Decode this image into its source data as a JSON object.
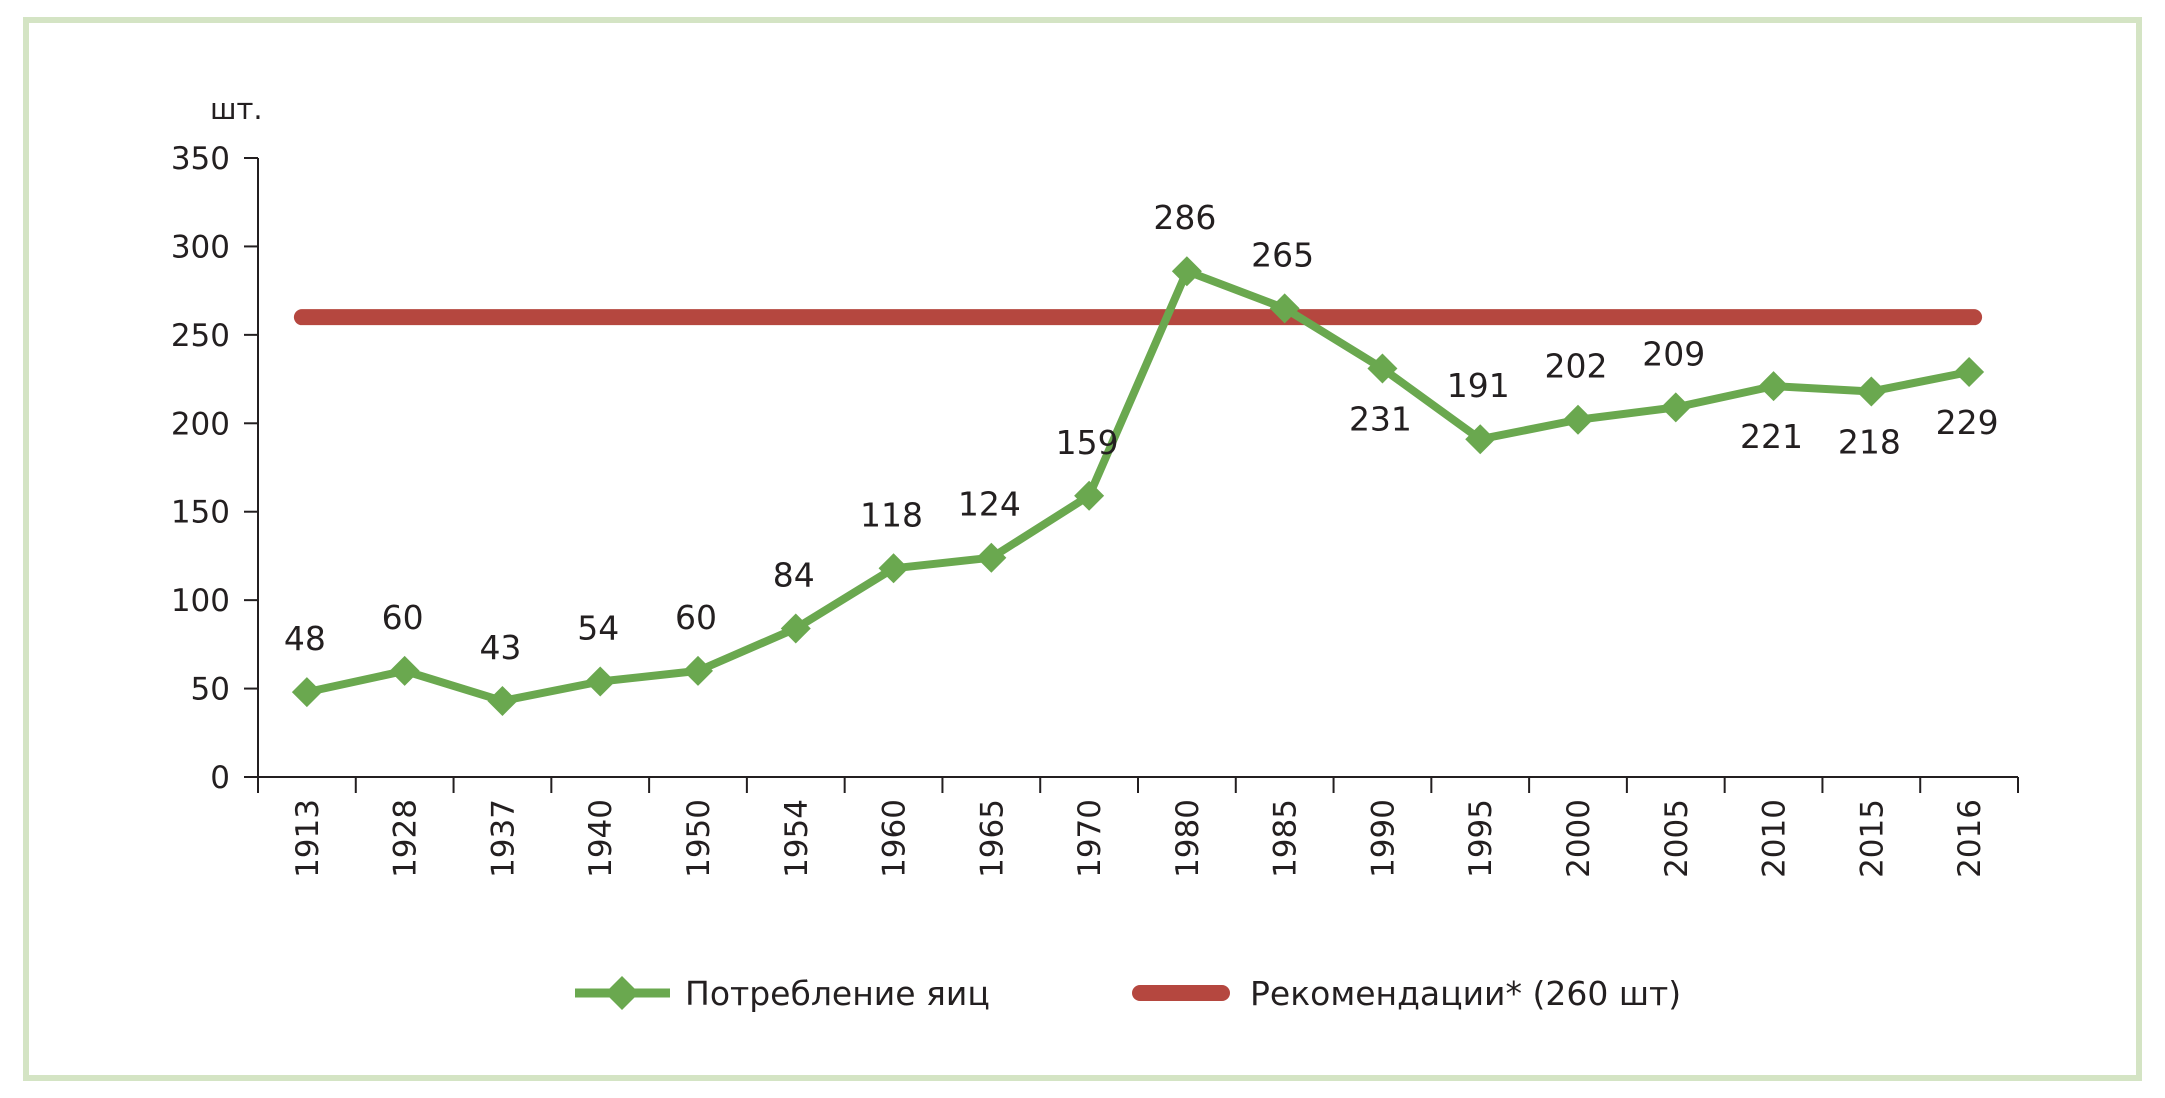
{
  "chart_data": {
    "type": "line",
    "title": "",
    "xlabel": "",
    "ylabel": "шт.",
    "ylim": [
      0,
      350
    ],
    "yticks": [
      0,
      50,
      100,
      150,
      200,
      250,
      300,
      350
    ],
    "grid": false,
    "legend_position": "bottom",
    "categories": [
      "1913",
      "1928",
      "1937",
      "1940",
      "1950",
      "1954",
      "1960",
      "1965",
      "1970",
      "1980",
      "1985",
      "1990",
      "1995",
      "2000",
      "2005",
      "2010",
      "2015",
      "2016"
    ],
    "series": [
      {
        "name": "Потребление яиц",
        "color": "#6aa84f",
        "marker": "diamond",
        "values": [
          48,
          60,
          43,
          54,
          60,
          84,
          118,
          124,
          159,
          286,
          265,
          231,
          191,
          202,
          209,
          221,
          218,
          229
        ],
        "label_positions": [
          "above",
          "above",
          "above",
          "above",
          "above",
          "above",
          "above",
          "above",
          "above",
          "above",
          "above",
          "below",
          "above",
          "above",
          "above",
          "below",
          "below",
          "below"
        ]
      },
      {
        "name": "Рекомендации* (260 шт)",
        "color": "#b5473f",
        "values": [
          260,
          260,
          260,
          260,
          260,
          260,
          260,
          260,
          260,
          260,
          260,
          260,
          260,
          260,
          260,
          260,
          260,
          260
        ]
      }
    ]
  },
  "colors": {
    "frame_border": "#d4e4c4",
    "axis": "#231f20"
  }
}
